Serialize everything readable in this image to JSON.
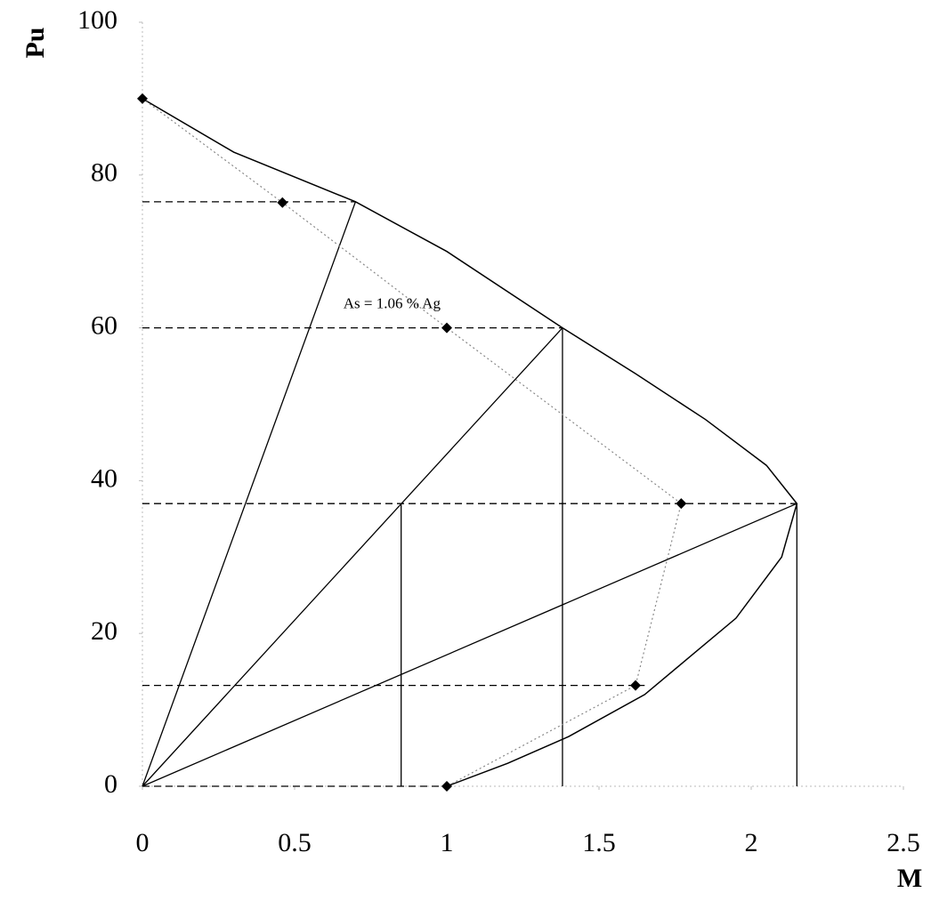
{
  "chart_data": {
    "type": "line",
    "x_label": "M",
    "y_label": "Pu",
    "annotation": {
      "text": "As = 1.06 % Ag",
      "x": 0.66,
      "y": 63
    },
    "xlim": [
      0,
      2.5
    ],
    "ylim": [
      0,
      100
    ],
    "xticks": [
      0,
      0.5,
      1,
      1.5,
      2,
      2.5
    ],
    "yticks": [
      0,
      20,
      40,
      60,
      80,
      100
    ],
    "series": [
      {
        "color": "#000000",
        "line_style": "solid",
        "marker": "none",
        "x": [
          0,
          0.3,
          0.7,
          1.0,
          1.38,
          1.62,
          1.85,
          2.05,
          2.15,
          2.1,
          1.95,
          1.8,
          1.65,
          1.4,
          1.2,
          1.0
        ],
        "values": [
          90,
          83,
          76.5,
          70,
          60,
          54,
          48,
          42,
          37,
          30,
          22,
          17,
          12,
          6.5,
          3,
          0
        ]
      },
      {
        "color": "#888888",
        "line_style": "dotted",
        "marker": "diamond",
        "x": [
          0,
          0.46,
          1.0,
          1.77,
          1.62,
          1.0
        ],
        "values": [
          90,
          76.4,
          60,
          37,
          13.2,
          0
        ]
      }
    ],
    "construction_lines": [
      {
        "line_style": "dashed",
        "x": [
          0,
          0.7
        ],
        "values": [
          76.5,
          76.5
        ]
      },
      {
        "line_style": "dashed",
        "x": [
          0,
          1.38
        ],
        "values": [
          60,
          60
        ]
      },
      {
        "line_style": "dashed",
        "x": [
          0,
          2.15
        ],
        "values": [
          37,
          37
        ]
      },
      {
        "line_style": "dashed",
        "x": [
          0,
          1.65
        ],
        "values": [
          13.2,
          13.2
        ]
      },
      {
        "line_style": "dashed",
        "x": [
          0,
          1.0
        ],
        "values": [
          0,
          0
        ]
      },
      {
        "line_style": "solid",
        "x": [
          0,
          0.7
        ],
        "values": [
          0,
          76.5
        ]
      },
      {
        "line_style": "solid",
        "x": [
          0,
          1.38
        ],
        "values": [
          0,
          60
        ]
      },
      {
        "line_style": "solid",
        "x": [
          0,
          2.15
        ],
        "values": [
          0,
          37
        ]
      },
      {
        "line_style": "solid",
        "x": [
          0.85,
          0.85
        ],
        "values": [
          37,
          0
        ]
      },
      {
        "line_style": "solid",
        "x": [
          1.38,
          1.38
        ],
        "values": [
          60,
          0
        ]
      },
      {
        "line_style": "solid",
        "x": [
          2.15,
          2.15
        ],
        "values": [
          37,
          0
        ]
      }
    ]
  }
}
